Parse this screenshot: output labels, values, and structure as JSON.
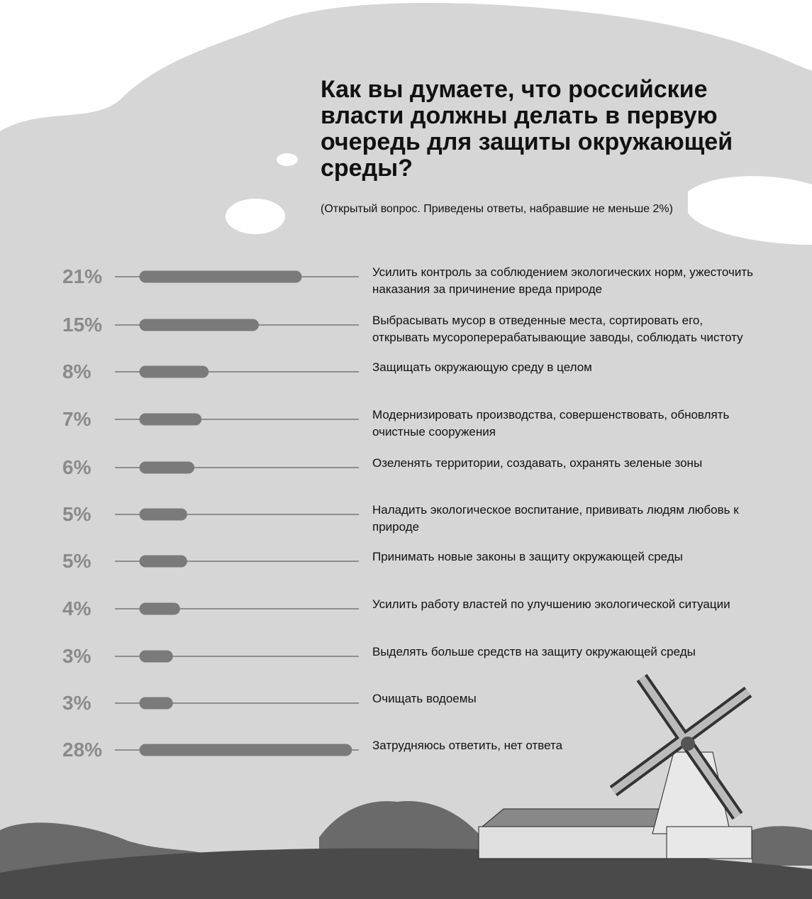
{
  "chart_data": {
    "type": "bar",
    "title": "Как вы думаете, что российские власти должны делать в первую очередь для защиты окружающей среды?",
    "subtitle": "(Открытый вопрос. Приведены ответы, набравшие не меньше 2%)",
    "categories": [
      "Усилить контроль за соблюдением экологических норм, ужесточить наказания за причинение вреда природе",
      "Выбрасывать мусор в отведенные места, сортировать его, открывать мусороперерабатывающие заводы, соблюдать чистоту",
      "Защищать окружающую среду в целом",
      "Модернизировать производства, совершенствовать, обновлять очистные сооружения",
      "Озеленять территории, создавать, охранять зеленые зоны",
      "Наладить экологическое воспитание, прививать людям любовь к природе",
      "Принимать новые законы в защиту окружающей среды",
      "Усилить работу властей по улучшению экологической ситуации",
      "Выделять больше средств на защиту окружающей среды",
      "Очищать водоемы",
      "Затрудняюсь ответить, нет ответа"
    ],
    "values": [
      21,
      15,
      8,
      7,
      6,
      5,
      5,
      4,
      3,
      3,
      28
    ],
    "value_labels": [
      "21%",
      "15%",
      "8%",
      "7%",
      "6%",
      "5%",
      "5%",
      "4%",
      "3%",
      "3%",
      "28%"
    ],
    "color": "#7a7a7a"
  }
}
